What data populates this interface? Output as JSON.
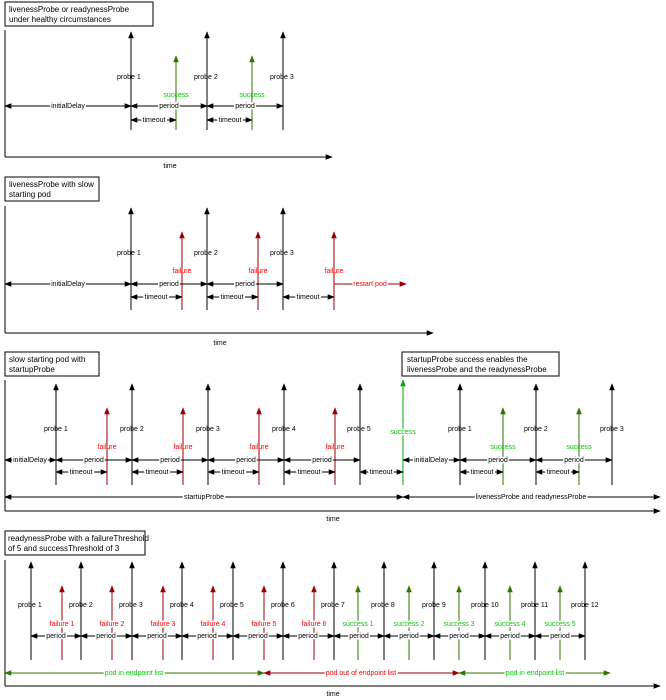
{
  "colors": {
    "black": "#000000",
    "red": "#ff0000",
    "green": "#00cc00",
    "darkred": "#990000",
    "darkgreen": "#2d7600"
  },
  "common": {
    "time": "time",
    "period": "period",
    "timeout": "timeout",
    "initialDelay": "initialDelay"
  },
  "panel1": {
    "title_line1": "livenessProbe or readynessProbe",
    "title_line2": "under healthy circumstances",
    "probes": [
      "probe 1",
      "probe 2",
      "probe 3"
    ],
    "results": [
      "success",
      "success"
    ]
  },
  "panel2": {
    "title_line1": "livenessProbe with slow",
    "title_line2": "starting pod",
    "probes": [
      "probe 1",
      "probe 2",
      "probe 3"
    ],
    "results": [
      "failure",
      "failure",
      "failure"
    ],
    "restart": "restart pod"
  },
  "panel3": {
    "title_line1": "slow starting pod with",
    "title_line2": "startupProbe",
    "note_line1": "startupProbe success enables the",
    "note_line2": "livenessProbe and the readynessProbe",
    "startup_probes": [
      "probe 1",
      "probe 2",
      "probe 3",
      "probe 4",
      "probe 5"
    ],
    "startup_results": [
      "failure",
      "failure",
      "failure",
      "failure"
    ],
    "startup_success": "success",
    "live_probes": [
      "probe 1",
      "probe 2",
      "probe 3"
    ],
    "live_results": [
      "success",
      "success"
    ],
    "span_startup": "startupProbe",
    "span_live": "livenessProbe and readynessProbe"
  },
  "panel4": {
    "title_line1": "readynessProbe with a failureThreshold",
    "title_line2": "of 5 and successThreshold of 3",
    "probes": [
      "probe 1",
      "probe 2",
      "probe 3",
      "probe 4",
      "probe 5",
      "probe 6",
      "probe 7",
      "probe 8",
      "probe 9",
      "probe 10",
      "probe 11",
      "probe 12"
    ],
    "results": [
      "failure 1",
      "failure 2",
      "failure 3",
      "failure 4",
      "failure 5",
      "failure 6",
      "success 1",
      "success 2",
      "success 3",
      "success 4",
      "success 5"
    ],
    "span_in_1": "pod in endpoint list",
    "span_out": "pod out of endpoint list",
    "span_in_2": "pod in endpoint list"
  }
}
